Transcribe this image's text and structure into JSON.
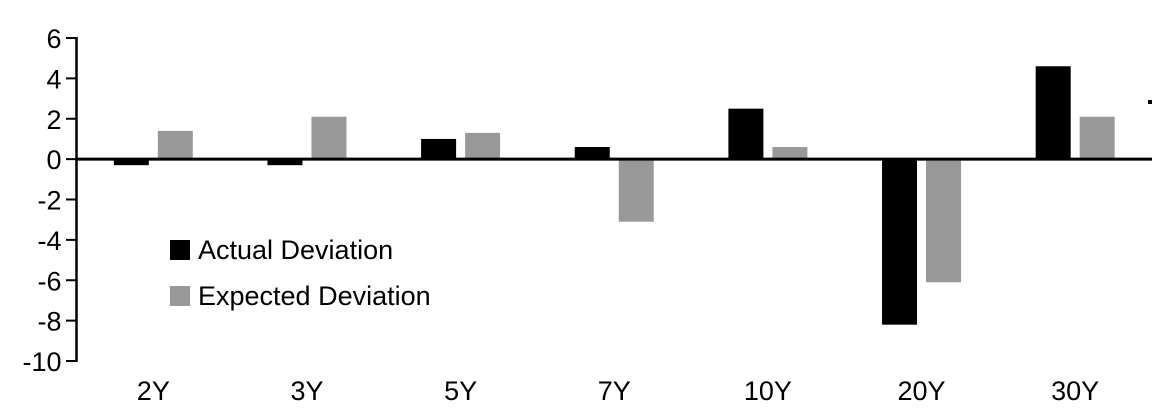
{
  "chart_data": {
    "type": "bar",
    "categories": [
      "2Y",
      "3Y",
      "5Y",
      "7Y",
      "10Y",
      "20Y",
      "30Y"
    ],
    "series": [
      {
        "name": "Actual Deviation",
        "color": "#000000",
        "values": [
          -0.3,
          -0.3,
          1.0,
          0.6,
          2.5,
          -8.2,
          4.6
        ]
      },
      {
        "name": "Expected Deviation",
        "color": "#999999",
        "values": [
          1.4,
          2.1,
          1.3,
          -3.1,
          0.6,
          -6.1,
          2.1
        ]
      }
    ],
    "ylim": [
      -10,
      6
    ],
    "yticks": [
      6,
      4,
      2,
      0,
      -2,
      -4,
      -6,
      -8,
      -10
    ],
    "grid": false,
    "legend_position": "inside-left",
    "background": "#ffffff",
    "axis_color": "#000000"
  }
}
